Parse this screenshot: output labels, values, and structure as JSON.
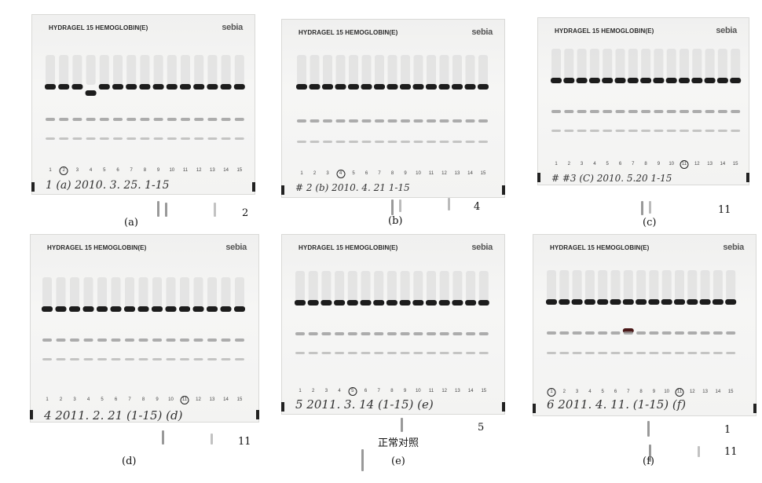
{
  "panels": [
    {
      "id": "a",
      "title": "HYDRAGEL 15 HEMOGLOBIN(E)",
      "brand": "sebia",
      "lane_numbers": [
        "1",
        "2",
        "3",
        "4",
        "5",
        "6",
        "7",
        "8",
        "9",
        "10",
        "11",
        "12",
        "13",
        "14",
        "15"
      ],
      "circled_lane": "2",
      "handwriting": "1     (a) 2010. 3. 25. 1-15",
      "caption": "(a)",
      "side_number": "2"
    },
    {
      "id": "b",
      "title": "HYDRAGEL 15 HEMOGLOBIN(E)",
      "brand": "sebia",
      "lane_numbers": [
        "1",
        "2",
        "3",
        "4",
        "5",
        "6",
        "7",
        "8",
        "9",
        "10",
        "11",
        "12",
        "13",
        "14",
        "15"
      ],
      "circled_lane": "4",
      "handwriting": "# 2  (b) 2010. 4. 21    1-15",
      "caption": "(b)",
      "side_number": "4"
    },
    {
      "id": "c",
      "title": "HYDRAGEL 15 HEMOGLOBIN(E)",
      "brand": "sebia",
      "lane_numbers": [
        "1",
        "2",
        "3",
        "4",
        "5",
        "6",
        "7",
        "8",
        "9",
        "10",
        "11",
        "12",
        "13",
        "14",
        "15"
      ],
      "circled_lane": "11",
      "handwriting": "# #3 (C) 2010. 5.20  1-15",
      "caption": "(c)",
      "side_number": "11"
    },
    {
      "id": "d",
      "title": "HYDRAGEL 15 HEMOGLOBIN(E)",
      "brand": "sebia",
      "lane_numbers": [
        "1",
        "2",
        "3",
        "4",
        "5",
        "6",
        "7",
        "8",
        "9",
        "10",
        "11",
        "12",
        "13",
        "14",
        "15"
      ],
      "circled_lane": "11",
      "handwriting": "4  2011. 2. 21  (1-15) (d)",
      "caption": "(d)",
      "side_number": "11"
    },
    {
      "id": "e",
      "title": "HYDRAGEL 15 HEMOGLOBIN(E)",
      "brand": "sebia",
      "lane_numbers": [
        "1",
        "2",
        "3",
        "4",
        "5",
        "6",
        "7",
        "8",
        "9",
        "10",
        "11",
        "12",
        "13",
        "14",
        "15"
      ],
      "circled_lane": "5",
      "handwriting": "5 2011. 3. 14 (1-15)  (e)",
      "caption": "(e)",
      "side_number": "5",
      "extra_label": "正常对照"
    },
    {
      "id": "f",
      "title": "HYDRAGEL 15 HEMOGLOBIN(E)",
      "brand": "sebia",
      "lane_numbers": [
        "1",
        "2",
        "3",
        "4",
        "5",
        "6",
        "7",
        "8",
        "9",
        "10",
        "11",
        "12",
        "13",
        "14",
        "15"
      ],
      "circled_lane": "11",
      "circled_lane_2": "1",
      "handwriting": "6 2011. 4. 11.  (1-15) (f)",
      "caption": "(f)",
      "side_number": "1",
      "side_number_2": "11"
    }
  ],
  "colors": {
    "band_main": "#1c1c1c",
    "band_faint": "#9a9a9a",
    "smear": "#d8d8d8"
  }
}
